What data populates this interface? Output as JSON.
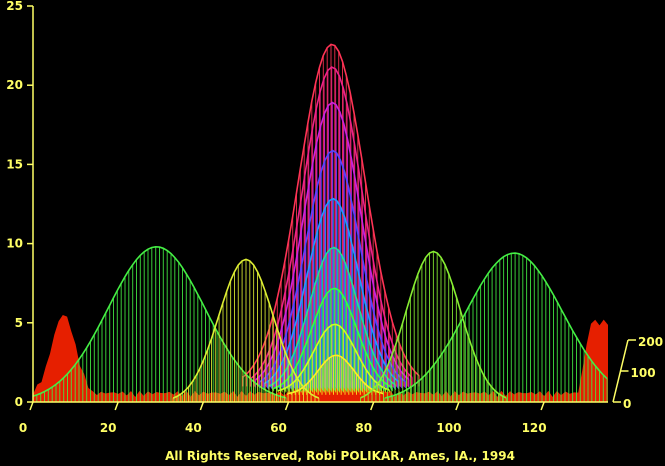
{
  "chart_data": {
    "type": "surface-3d",
    "title": "",
    "xlabel": "",
    "ylabel": "",
    "zlabel": "",
    "x_ticks": [
      "0",
      "20",
      "40",
      "60",
      "80",
      "100",
      "120"
    ],
    "y_ticks": [
      "0",
      "5",
      "10",
      "15",
      "20",
      "25"
    ],
    "depth_ticks": [
      "0",
      "100",
      "200"
    ],
    "xlim": [
      0,
      135
    ],
    "ylim": [
      0,
      25
    ],
    "depth_lim": [
      0,
      200
    ],
    "background": "#000000",
    "axis_color": "#ffff66",
    "series": [
      {
        "center": 72,
        "width": 11,
        "peak": 21.6,
        "depth": 130,
        "color": "#ff3355"
      },
      {
        "center": 72,
        "width": 10,
        "peak": 20.2,
        "depth": 125,
        "color": "#ee2288"
      },
      {
        "center": 72,
        "width": 9.5,
        "peak": 18.0,
        "depth": 120,
        "color": "#cc22dd"
      },
      {
        "center": 72,
        "width": 9,
        "peak": 15.0,
        "depth": 115,
        "color": "#5544ff"
      },
      {
        "center": 72,
        "width": 8.5,
        "peak": 12.0,
        "depth": 110,
        "color": "#2299ff"
      },
      {
        "center": 72,
        "width": 8,
        "peak": 9.0,
        "depth": 100,
        "color": "#22dd99"
      },
      {
        "center": 72,
        "width": 7.5,
        "peak": 6.5,
        "depth": 90,
        "color": "#33ff44"
      },
      {
        "center": 72,
        "width": 7,
        "peak": 4.3,
        "depth": 80,
        "color": "#ccff22"
      },
      {
        "center": 72,
        "width": 6,
        "peak": 2.5,
        "depth": 60,
        "color": "#ffee22"
      },
      {
        "center": 29,
        "width": 16,
        "peak": 9.8,
        "depth": 0,
        "color": "#44ee44"
      },
      {
        "center": 113,
        "width": 16,
        "peak": 9.4,
        "depth": 0,
        "color": "#44ee44"
      },
      {
        "center": 50,
        "width": 9,
        "peak": 9.0,
        "depth": 0,
        "color": "#ddee33"
      },
      {
        "center": 94,
        "width": 9,
        "peak": 9.5,
        "depth": 0,
        "color": "#88ee33"
      }
    ],
    "base_noise": {
      "color": "#ff2200",
      "left_peak": 5.2,
      "right_peak": 4.5
    }
  },
  "credit": "All Rights Reserved, Robi POLIKAR, Ames, IA., 1994"
}
